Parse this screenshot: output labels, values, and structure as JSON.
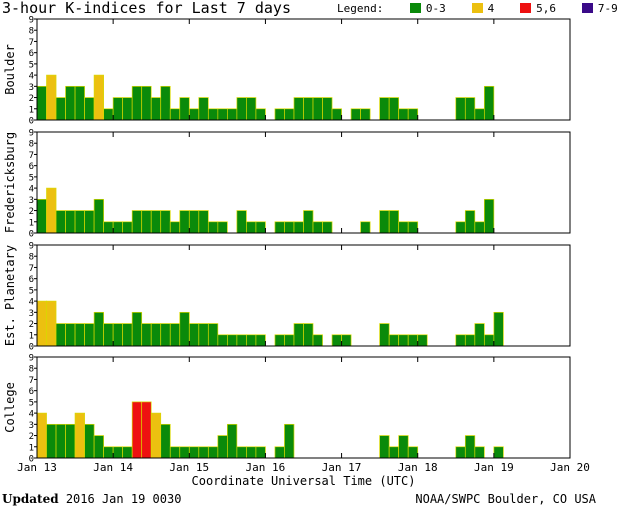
{
  "title": "3-hour K-indices for Last 7 days",
  "legend": {
    "label": "Legend:",
    "items": [
      {
        "label": "0-3",
        "color": "#0a8a0a"
      },
      {
        "label": "4",
        "color": "#ecc010"
      },
      {
        "label": "5,6",
        "color": "#ee1111"
      },
      {
        "label": "7-9",
        "color": "#3a0a88"
      }
    ]
  },
  "footer": {
    "updated_label": "Updated",
    "updated_value": "2016 Jan 19 0030",
    "source": "NOAA/SWPC Boulder, CO USA"
  },
  "chart_data": {
    "type": "bar",
    "x_tick_labels": [
      "Jan 13",
      "Jan 14",
      "Jan 15",
      "Jan 16",
      "Jan 17",
      "Jan 18",
      "Jan 19",
      "Jan 20"
    ],
    "xlabel": "Coordinate Universal Time (UTC)",
    "ylim": [
      0,
      9
    ],
    "y_ticks": [
      0,
      1,
      2,
      3,
      4,
      5,
      6,
      7,
      8,
      9
    ],
    "interval_hours": 3,
    "series": [
      {
        "name": "Boulder",
        "values": [
          3,
          4,
          2,
          3,
          3,
          2,
          4,
          1,
          2,
          2,
          3,
          3,
          2,
          3,
          1,
          2,
          1,
          2,
          1,
          1,
          1,
          2,
          2,
          1,
          0,
          1,
          1,
          2,
          2,
          2,
          2,
          1,
          0,
          1,
          1,
          0,
          2,
          2,
          1,
          1,
          0,
          0,
          0,
          0,
          2,
          2,
          1,
          3
        ]
      },
      {
        "name": "Fredericksburg",
        "values": [
          3,
          4,
          2,
          2,
          2,
          2,
          3,
          1,
          1,
          1,
          2,
          2,
          2,
          2,
          1,
          2,
          2,
          2,
          1,
          1,
          0,
          2,
          1,
          1,
          0,
          1,
          1,
          1,
          2,
          1,
          1,
          0,
          0,
          0,
          1,
          0,
          2,
          2,
          1,
          1,
          0,
          0,
          0,
          0,
          1,
          2,
          1,
          3
        ]
      },
      {
        "name": "Est. Planetary",
        "values": [
          4,
          4,
          2,
          2,
          2,
          2,
          3,
          2,
          2,
          2,
          3,
          2,
          2,
          2,
          2,
          3,
          2,
          2,
          2,
          1,
          1,
          1,
          1,
          1,
          0,
          1,
          1,
          2,
          2,
          1,
          0,
          1,
          1,
          0,
          0,
          0,
          2,
          1,
          1,
          1,
          1,
          0,
          0,
          0,
          1,
          1,
          2,
          1,
          3
        ]
      },
      {
        "name": "College",
        "values": [
          4,
          3,
          3,
          3,
          4,
          3,
          2,
          1,
          1,
          1,
          5,
          5,
          4,
          3,
          1,
          1,
          1,
          1,
          1,
          2,
          3,
          1,
          1,
          1,
          0,
          1,
          3,
          0,
          0,
          0,
          0,
          0,
          0,
          0,
          0,
          0,
          2,
          1,
          2,
          1,
          0,
          0,
          0,
          0,
          1,
          2,
          1,
          0,
          1
        ]
      }
    ]
  }
}
